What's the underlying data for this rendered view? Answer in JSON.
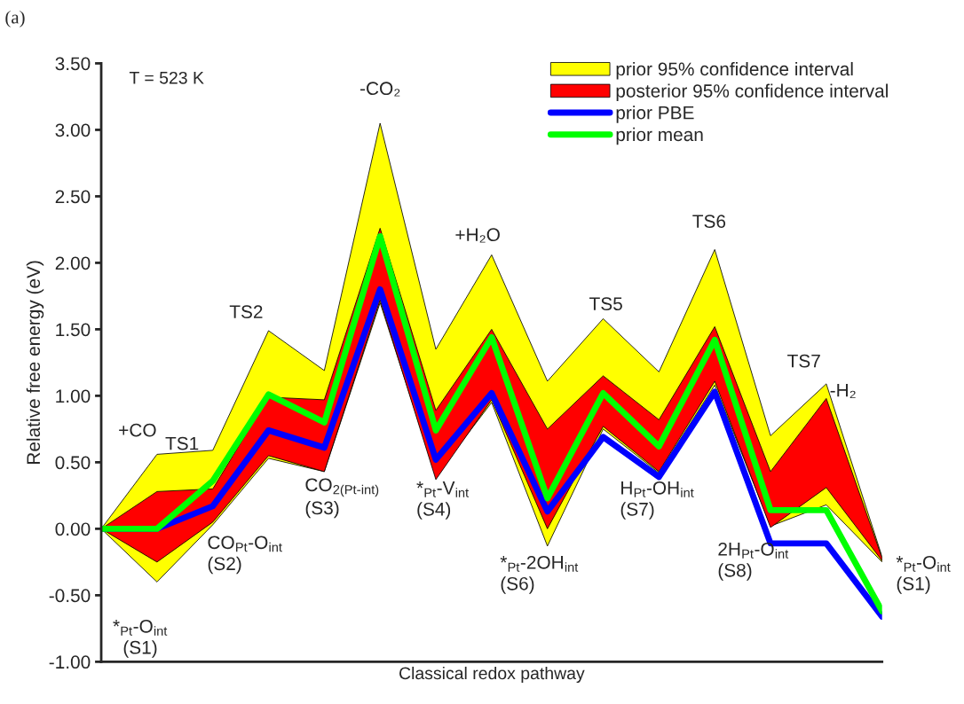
{
  "chart_data": {
    "type": "line",
    "categories": [
      null,
      null,
      null,
      null,
      null,
      null,
      null,
      null,
      null,
      null,
      null,
      null,
      null,
      null,
      null
    ],
    "xlabel": "Classical redox pathway",
    "ylabel": "Relative free energy (eV)",
    "ylim": [
      -1.0,
      3.5
    ],
    "yticks": [
      {
        "value": -1.0,
        "label": "-1.00"
      },
      {
        "value": -0.5,
        "label": "-0.50"
      },
      {
        "value": 0.0,
        "label": "0.00"
      },
      {
        "value": 0.5,
        "label": "0.50"
      },
      {
        "value": 1.0,
        "label": "1.00"
      },
      {
        "value": 1.5,
        "label": "1.50"
      },
      {
        "value": 2.0,
        "label": "2.00"
      },
      {
        "value": 2.5,
        "label": "2.50"
      },
      {
        "value": 3.0,
        "label": "3.00"
      },
      {
        "value": 3.5,
        "label": "3.50"
      }
    ],
    "tick_labels": "y",
    "grid": false,
    "legend": "top right",
    "series": [
      {
        "name": "prior 95% confidence interval",
        "color": "#ffff00",
        "values": [
          null,
          null,
          null,
          null,
          null,
          null,
          null,
          null,
          null,
          null,
          null,
          null,
          null,
          null,
          null
        ],
        "lower": [
          0,
          -0.4,
          0.03,
          0.53,
          0.43,
          1.7,
          0.4,
          0.95,
          -0.13,
          0.75,
          0.42,
          1.08,
          0.02,
          0.18,
          -0.25
        ],
        "upper": [
          0,
          0.56,
          0.59,
          1.49,
          1.19,
          3.05,
          1.35,
          2.06,
          1.11,
          1.58,
          1.18,
          2.1,
          0.7,
          1.09,
          -0.21
        ]
      },
      {
        "name": "posterior 95% confidence interval",
        "color": "#ff0000",
        "values": [
          null,
          null,
          null,
          null,
          null,
          null,
          null,
          null,
          null,
          null,
          null,
          null,
          null,
          null,
          null
        ],
        "lower": [
          0,
          -0.25,
          0.05,
          0.55,
          0.43,
          1.72,
          0.37,
          0.97,
          0.0,
          0.77,
          0.43,
          1.11,
          0.01,
          0.31,
          -0.24
        ],
        "upper": [
          0,
          0.28,
          0.3,
          0.99,
          0.97,
          2.26,
          0.89,
          1.5,
          0.75,
          1.15,
          0.82,
          1.52,
          0.43,
          0.98,
          -0.22
        ]
      },
      {
        "name": "prior PBE",
        "type": "line",
        "color": "#0000ff",
        "values": [
          0,
          0,
          0.17,
          0.74,
          0.61,
          1.8,
          0.52,
          1.02,
          0.13,
          0.69,
          0.39,
          1.03,
          -0.11,
          -0.11,
          -0.66
        ]
      },
      {
        "name": "prior mean",
        "type": "line",
        "color": "#00ff00",
        "values": [
          0,
          0,
          0.36,
          1.01,
          0.8,
          2.2,
          0.74,
          1.44,
          0.23,
          1.02,
          0.62,
          1.42,
          0.14,
          0.14,
          -0.62
        ]
      }
    ],
    "title": "(a)",
    "annotations": [
      "T = 523 K",
      "+CO",
      "TS1",
      "TS2",
      "-CO₂",
      "+H₂O",
      "TS5",
      "TS6",
      "TS7",
      "-H₂",
      "*$_{Pt}$-O$_{int}$\n(S1)",
      "CO$_{Pt}$-O$_{int}$\n(S2)",
      "CO$_{2(Pt-int)}$\n(S3)",
      "*$_{Pt}$-V$_{int}$\n(S4)",
      "*$_{Pt}$-2OH$_{int}$\n(S6)",
      "H$_{Pt}$-OH$_{int}$\n(S7)",
      "2H$_{Pt}$-O$_{int}$\n(S8)",
      "*$_{Pt}$-O$_{int}$\n(S1)"
    ]
  }
}
